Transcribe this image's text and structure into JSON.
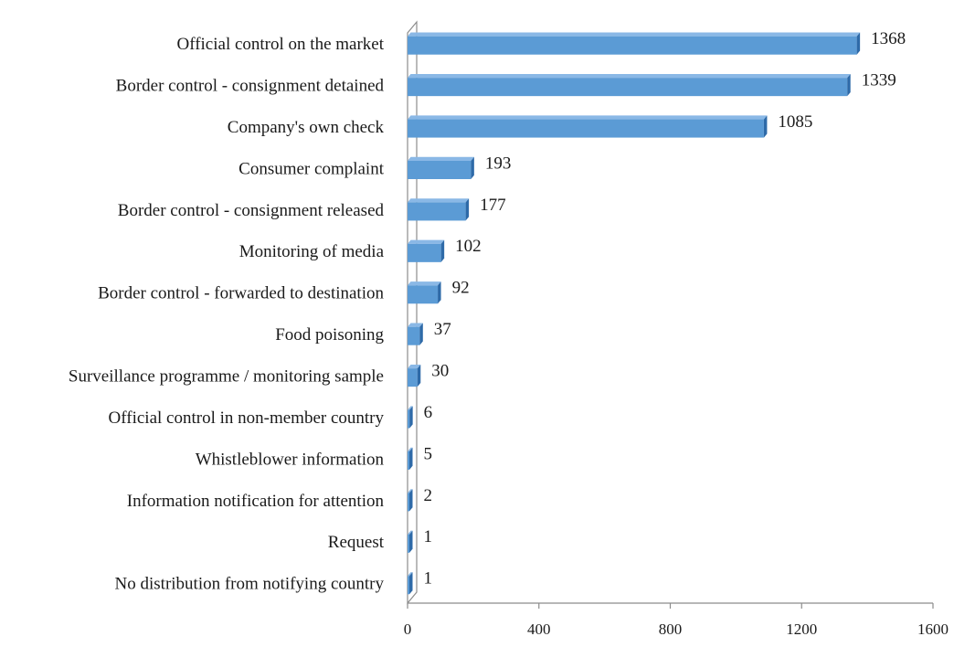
{
  "chart_data": {
    "type": "bar",
    "orientation": "horizontal",
    "style": "3d",
    "categories": [
      "Official control on the market",
      "Border control - consignment detained",
      "Company's own check",
      "Consumer complaint",
      "Border control - consignment released",
      "Monitoring of media",
      "Border control - forwarded to destination",
      "Food poisoning",
      "Surveillance programme / monitoring sample",
      "Official control in non-member country",
      "Whistleblower information",
      "Information notification for attention",
      "Request",
      "No distribution from notifying country"
    ],
    "values": [
      1368,
      1339,
      1085,
      193,
      177,
      102,
      92,
      37,
      30,
      6,
      5,
      2,
      1,
      1
    ],
    "value_labels": [
      "1368",
      "1339",
      "1085",
      "193",
      "177",
      "102",
      "92",
      "37",
      "30",
      "6",
      "5",
      "2",
      "1",
      "1"
    ],
    "xlim": [
      0,
      1600
    ],
    "xticks": [
      0,
      400,
      800,
      1200,
      1600
    ],
    "xtick_labels": [
      "0",
      "400",
      "800",
      "1200",
      "1600"
    ],
    "grid": false,
    "legend": "none",
    "colors": {
      "bar_front": "#5b9bd5",
      "bar_top": "#8ab8e6",
      "bar_side": "#2e6aa8",
      "axis": "#8c8c8c"
    }
  }
}
